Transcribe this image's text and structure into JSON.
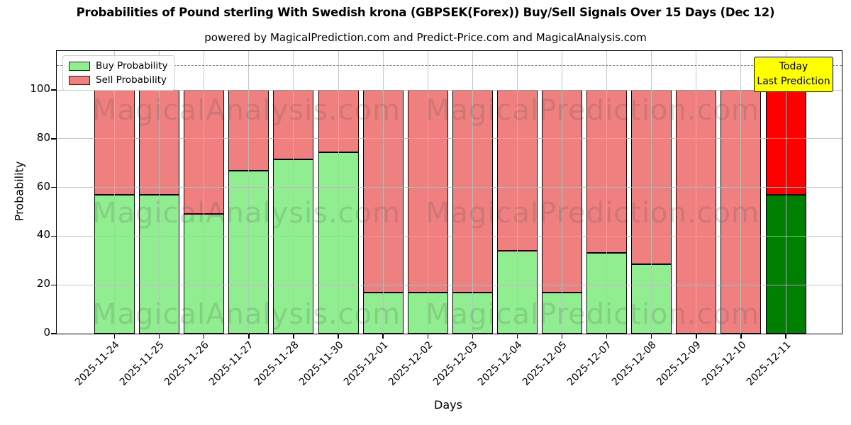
{
  "title": "Probabilities of Pound sterling With Swedish krona (GBPSEK(Forex)) Buy/Sell Signals Over 15 Days (Dec 12)",
  "subtitle": "powered by MagicalPrediction.com and Predict-Price.com and MagicalAnalysis.com",
  "watermarks": {
    "left_text": "MagicalAnalysis.com",
    "right_text": "MagicalPrediction.com"
  },
  "annotation": {
    "line1": "Today",
    "line2": "Last Prediction",
    "bg_color": "#ffff00"
  },
  "legend": {
    "items": [
      {
        "label": "Buy Probability",
        "color": "#90ee90"
      },
      {
        "label": "Sell Probability",
        "color": "#f08080"
      }
    ]
  },
  "chart_data": {
    "type": "bar",
    "stacked": true,
    "title": "Probabilities of Pound sterling With Swedish krona (GBPSEK(Forex)) Buy/Sell Signals Over 15 Days (Dec 12)",
    "xlabel": "Days",
    "ylabel": "Probability",
    "categories": [
      "2025-11-24",
      "2025-11-25",
      "2025-11-26",
      "2025-11-27",
      "2025-11-28",
      "2025-11-30",
      "2025-12-01",
      "2025-12-02",
      "2025-12-03",
      "2025-12-04",
      "2025-12-05",
      "2025-12-07",
      "2025-12-08",
      "2025-12-09",
      "2025-12-10",
      "2025-12-11"
    ],
    "series": [
      {
        "name": "Buy Probability",
        "color": "#90ee90",
        "values": [
          57,
          57,
          49,
          67,
          71.5,
          74.5,
          17,
          17,
          17,
          34,
          17,
          33,
          28.5,
          0,
          0,
          57
        ]
      },
      {
        "name": "Sell Probability",
        "color": "#f08080",
        "values": [
          43,
          43,
          51,
          33,
          28.5,
          25.5,
          83,
          83,
          83,
          66,
          83,
          67,
          71.5,
          100,
          100,
          43
        ]
      }
    ],
    "today_bar": {
      "category": "2025-12-11",
      "index": 15,
      "buy_color": "#008000",
      "sell_color": "#ff0000"
    },
    "yticks": [
      0,
      20,
      40,
      60,
      80,
      100
    ],
    "ylim": [
      0,
      116
    ],
    "dashed_line_y": 110,
    "grid": true,
    "legend_position": "upper left"
  }
}
